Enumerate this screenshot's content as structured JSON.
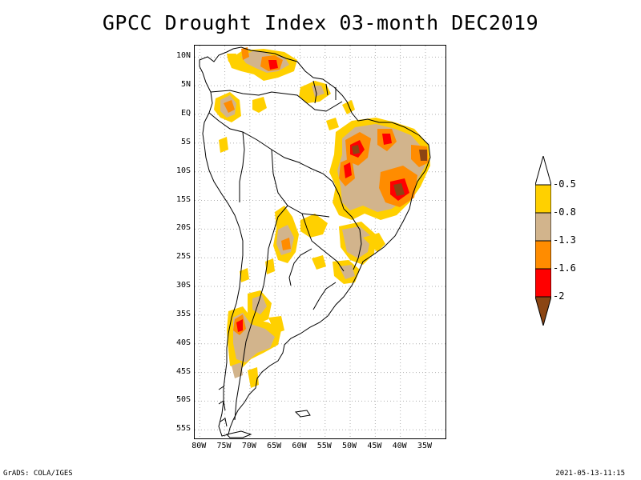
{
  "title": "GPCC Drought Index 03-month DEC2019",
  "map": {
    "lat_ticks": [
      "10N",
      "5N",
      "EQ",
      "5S",
      "10S",
      "15S",
      "20S",
      "25S",
      "30S",
      "35S",
      "40S",
      "45S",
      "50S",
      "55S"
    ],
    "lon_ticks": [
      "80W",
      "75W",
      "70W",
      "65W",
      "60W",
      "55W",
      "50W",
      "45W",
      "40W",
      "35W"
    ],
    "extent": {
      "lon_min": -81,
      "lon_max": -31,
      "lat_min": -56.5,
      "lat_max": 12
    }
  },
  "colorbar": {
    "labels": [
      "-0.5",
      "-0.8",
      "-1.3",
      "-1.6",
      "-2"
    ],
    "colors": [
      "#ffffff",
      "#ffd000",
      "#d2b48c",
      "#ff8c00",
      "#ff0000",
      "#8b4513"
    ]
  },
  "colors": {
    "yellow": "#ffd000",
    "tan": "#d2b48c",
    "orange": "#ff8c00",
    "red": "#ff0000",
    "brown": "#8b4513"
  },
  "footer": {
    "left": "GrADS: COLA/IGES",
    "right": "2021-05-13-11:15"
  }
}
